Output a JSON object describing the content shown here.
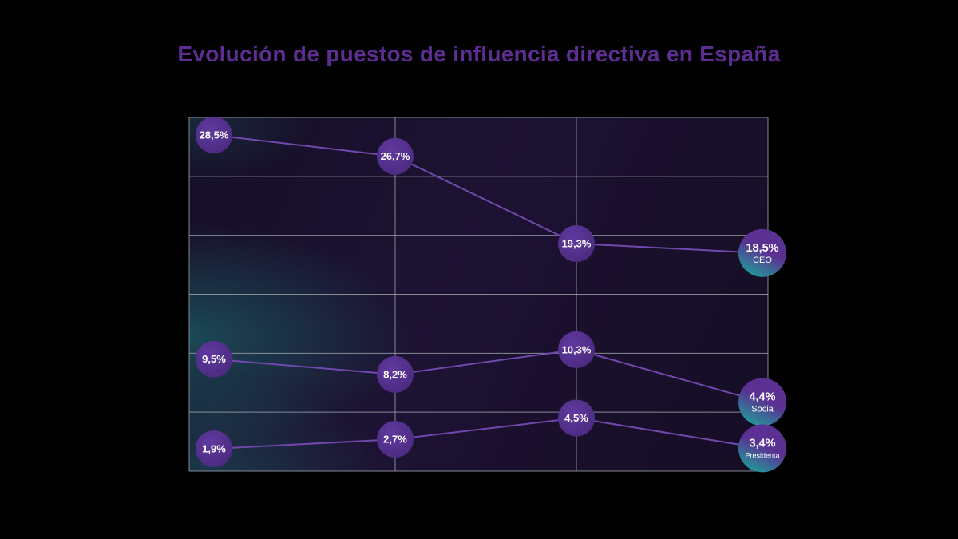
{
  "title": "Evolución de puestos de influencia directiva en España",
  "colors": {
    "background": "#000000",
    "title": "#5e2d92",
    "grid": "#999fa6",
    "line": "#7148ad",
    "point_fill_center": "#61399f",
    "point_fill_edge": "#492a7e",
    "end_gradient_top": "#5a3192",
    "end_gradient_bottom": "#1f9f9b",
    "point_text": "#ffffff"
  },
  "chart_data": {
    "type": "line",
    "title": "Evolución de puestos de influencia directiva en España",
    "x": [
      0,
      1,
      2,
      3
    ],
    "ylim": [
      0,
      30
    ],
    "grid_rows": 6,
    "grid": true,
    "legend_position": "labels-at-line-end",
    "value_format": "percent-comma-decimal",
    "series": [
      {
        "name": "CEO",
        "values": [
          28.5,
          26.7,
          19.3,
          18.5
        ],
        "point_labels": [
          "28,5%",
          "26,7%",
          "19,3%",
          "18,5%"
        ]
      },
      {
        "name": "Socia",
        "values": [
          9.5,
          8.2,
          10.3,
          4.4
        ],
        "point_labels": [
          "9,5%",
          "8,2%",
          "10,3%",
          "4,4%"
        ]
      },
      {
        "name": "Presidenta",
        "values": [
          1.9,
          2.7,
          4.5,
          3.4
        ],
        "point_labels": [
          "1,9%",
          "2,7%",
          "4,5%",
          "3,4%"
        ]
      }
    ]
  }
}
